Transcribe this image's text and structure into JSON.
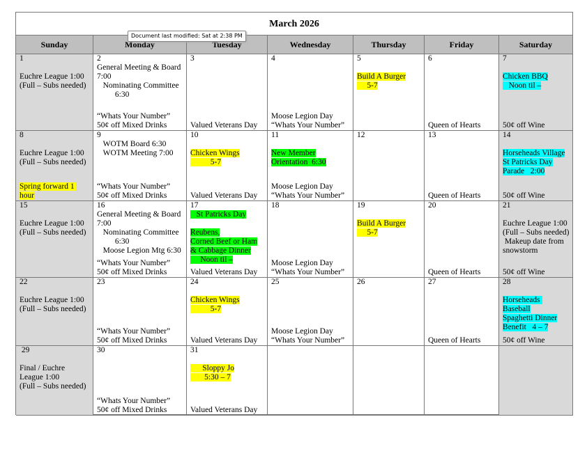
{
  "title": "March 2026",
  "tooltip": "Document last modified: Sat at 2:38 PM",
  "days": [
    "Sunday",
    "Monday",
    "Tuesday",
    "Wednesday",
    "Thursday",
    "Friday",
    "Saturday"
  ],
  "weeks": [
    {
      "cells": [
        {
          "day": "1",
          "mid": [
            "Euchre League 1:00",
            "(Full – Subs needed)"
          ]
        },
        {
          "day": "2",
          "top": [
            "General Meeting & Board 7:00",
            "   Nominating Committee",
            "         6:30"
          ],
          "bottom": [
            "“Whats Your Number”",
            "50¢ off Mixed Drinks"
          ]
        },
        {
          "day": "3",
          "bottom": [
            "Valued Veterans Day"
          ]
        },
        {
          "day": "4",
          "bottom": [
            "Moose Legion Day",
            "“Whats Your Number”"
          ]
        },
        {
          "day": "5",
          "mid": [
            {
              "text": "Build A Burger",
              "hl": "#ffff00"
            },
            {
              "text": "     5-7",
              "hl": "#ffff00"
            }
          ]
        },
        {
          "day": "6",
          "bottom": [
            "Queen of Hearts"
          ]
        },
        {
          "day": "7",
          "mid": [
            {
              "text": "Chicken BBQ",
              "hl": "#00ffff"
            },
            {
              "text": "   Noon til –",
              "hl": "#00ffff"
            }
          ],
          "bottom": [
            "50¢ off Wine"
          ]
        }
      ]
    },
    {
      "cells": [
        {
          "day": "8",
          "mid": [
            "Euchre League 1:00",
            "(Full – Subs needed)"
          ],
          "bottom": [
            {
              "text": "Spring forward 1 hour",
              "hl": "#ffff00"
            }
          ]
        },
        {
          "day": "9",
          "top": [
            "   WOTM Board 6:30",
            "   WOTM Meeting 7:00"
          ],
          "bottom": [
            "“Whats Your Number”",
            "50¢ off Mixed Drinks"
          ]
        },
        {
          "day": "10",
          "mid": [
            {
              "text": "Chicken Wings",
              "hl": "#ffff00"
            },
            {
              "text": "          5-7",
              "hl": "#ffff00"
            }
          ],
          "bottom": [
            "Valued Veterans Day"
          ]
        },
        {
          "day": "11",
          "mid": [
            {
              "text": "New Member",
              "hl": "#00ff00"
            },
            {
              "text": "Orientation  6:30",
              "hl": "#00ff00"
            }
          ],
          "bottom": [
            "Moose Legion Day",
            "“Whats Your Number”"
          ]
        },
        {
          "day": "12"
        },
        {
          "day": "13",
          "bottom": [
            "Queen of Hearts"
          ]
        },
        {
          "day": "14",
          "mid": [
            {
              "text": "Horseheads Village",
              "hl": "#00ffff"
            },
            {
              "text": "St Patricks Day",
              "hl": "#00ffff"
            },
            {
              "text": "Parade   2:00",
              "hl": "#00ffff"
            }
          ],
          "bottom": [
            "50¢ off Wine"
          ]
        }
      ]
    },
    {
      "cells": [
        {
          "day": "15",
          "mid": [
            "Euchre League 1:00",
            "(Full – Subs needed)"
          ]
        },
        {
          "day": "16",
          "top": [
            "General Meeting & Board 7:00",
            "   Nominating Committee",
            "         6:30",
            "   Moose Legion Mtg 6:30"
          ],
          "bottom": [
            "“Whats Your Number”",
            "50¢ off Mixed Drinks"
          ]
        },
        {
          "day": "17",
          "top": [
            {
              "text": "   St Patricks Day",
              "hl": "#00ff00"
            }
          ],
          "mid": [
            {
              "text": "Reubens,",
              "hl": "#00ff00"
            },
            {
              "text": "Corned Beef or Ham",
              "hl": "#00ff00"
            },
            {
              "text": "& Cabbage Dinner",
              "hl": "#00ff00"
            },
            {
              "text": "     Noon til –",
              "hl": "#00ff00"
            }
          ],
          "bottom": [
            "Valued Veterans Day"
          ]
        },
        {
          "day": "18",
          "bottom": [
            "Moose Legion Day",
            "“Whats Your Number”"
          ]
        },
        {
          "day": "19",
          "mid": [
            {
              "text": "Build A Burger",
              "hl": "#ffff00"
            },
            {
              "text": "     5-7",
              "hl": "#ffff00"
            }
          ]
        },
        {
          "day": "20",
          "bottom": [
            "Queen of Hearts"
          ]
        },
        {
          "day": "21",
          "mid": [
            "Euchre League 1:00",
            "(Full – Subs needed)",
            " Makeup date from",
            "snowstorm"
          ],
          "bottom": [
            "50¢ off Wine"
          ]
        }
      ]
    },
    {
      "cells": [
        {
          "day": "22",
          "mid": [
            "Euchre League 1:00",
            "(Full – Subs needed)"
          ]
        },
        {
          "day": "23",
          "bottom": [
            "“Whats Your Number”",
            "50¢ off Mixed Drinks"
          ]
        },
        {
          "day": "24",
          "mid": [
            {
              "text": "Chicken Wings",
              "hl": "#ffff00"
            },
            {
              "text": "          5-7",
              "hl": "#ffff00"
            }
          ],
          "bottom": [
            "Valued Veterans Day"
          ]
        },
        {
          "day": "25",
          "bottom": [
            "Moose Legion Day",
            "“Whats Your Number”"
          ]
        },
        {
          "day": "26"
        },
        {
          "day": "27",
          "bottom": [
            "Queen of Hearts"
          ]
        },
        {
          "day": "28",
          "mid": [
            {
              "text": "Horseheads Baseball",
              "hl": "#00ffff"
            },
            {
              "text": "Spaghetti Dinner",
              "hl": "#00ffff"
            },
            {
              "text": "Benefit   4 – 7",
              "hl": "#00ffff"
            }
          ],
          "bottom": [
            "50¢ off Wine"
          ]
        }
      ]
    },
    {
      "cells": [
        {
          "day": " 29",
          "mid": [
            "Final / Euchre",
            "League 1:00",
            "(Full – Subs needed)"
          ]
        },
        {
          "day": "30",
          "bottom": [
            "“Whats Your Number”",
            "50¢ off Mixed Drinks"
          ]
        },
        {
          "day": "31",
          "mid": [
            {
              "text": "      Sloppy Jo",
              "hl": "#ffff00"
            },
            {
              "text": "       5:30 – 7",
              "hl": "#ffff00"
            }
          ],
          "bottom": [
            "Valued Veterans Day"
          ]
        },
        {},
        {},
        {},
        {}
      ]
    }
  ]
}
